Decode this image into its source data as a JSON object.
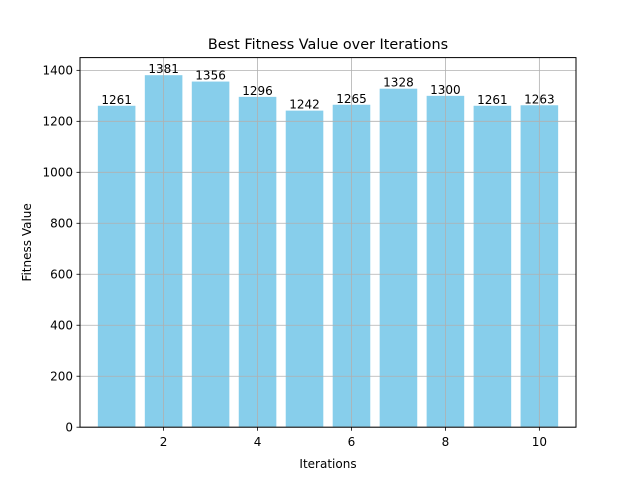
{
  "chart_data": {
    "type": "bar",
    "title": "Best Fitness Value over Iterations",
    "xlabel": "Iterations",
    "ylabel": "Fitness Value",
    "categories": [
      1,
      2,
      3,
      4,
      5,
      6,
      7,
      8,
      9,
      10
    ],
    "values": [
      1261,
      1381,
      1356,
      1296,
      1242,
      1265,
      1328,
      1300,
      1261,
      1263
    ],
    "data_labels": [
      "1261",
      "1381",
      "1356",
      "1296",
      "1242",
      "1265",
      "1328",
      "1300",
      "1261",
      "1263"
    ],
    "xlim": [
      0.22,
      10.78
    ],
    "ylim": [
      0,
      1450
    ],
    "xticks": [
      2,
      4,
      6,
      8,
      10
    ],
    "xtick_labels": [
      "2",
      "4",
      "6",
      "8",
      "10"
    ],
    "yticks": [
      0,
      200,
      400,
      600,
      800,
      1000,
      1200,
      1400
    ],
    "ytick_labels": [
      "0",
      "200",
      "400",
      "600",
      "800",
      "1000",
      "1200",
      "1400"
    ],
    "grid": true,
    "bar_color": "#87ceeb",
    "grid_color": "#b0b0b0"
  }
}
